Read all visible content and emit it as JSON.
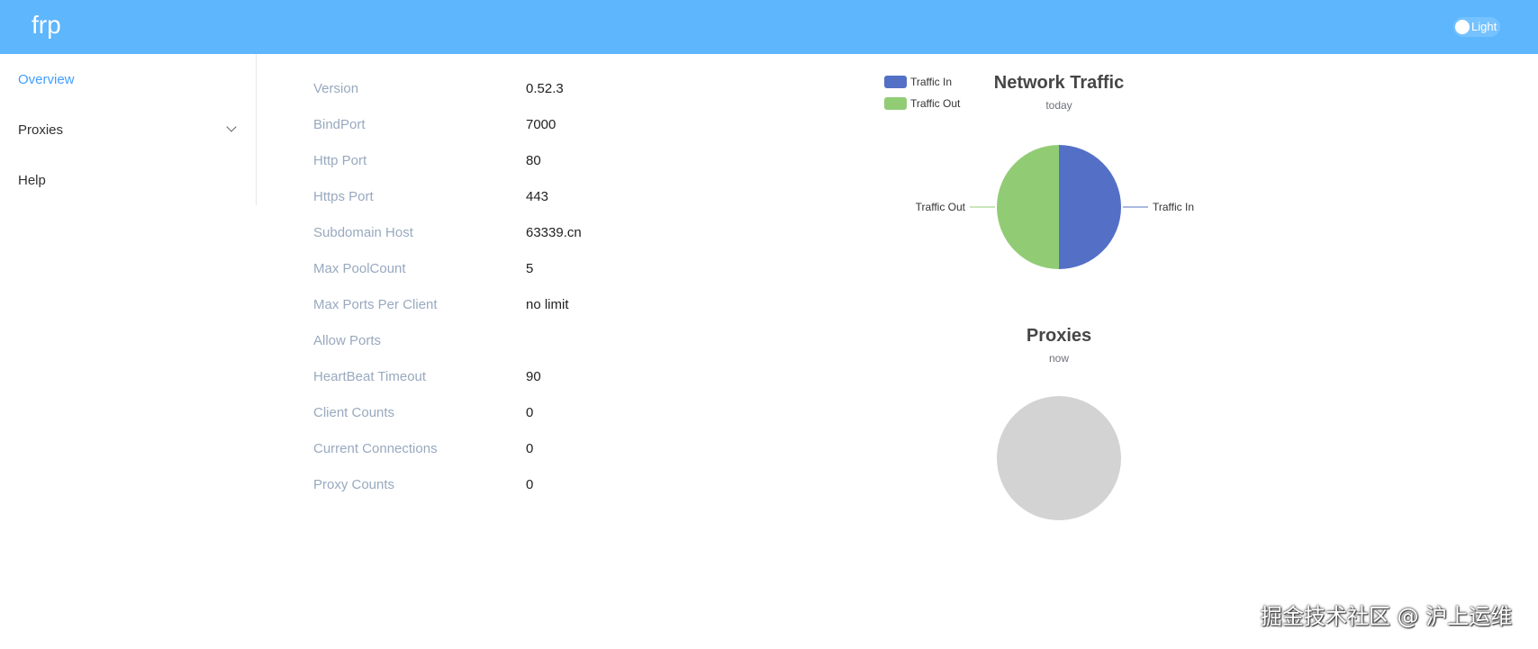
{
  "header": {
    "brand": "frp",
    "theme_toggle_label": "Light"
  },
  "sidebar": {
    "items": [
      {
        "label": "Overview",
        "active": true
      },
      {
        "label": "Proxies",
        "expandable": true
      },
      {
        "label": "Help"
      }
    ]
  },
  "server_info": [
    {
      "label": "Version",
      "value": "0.52.3"
    },
    {
      "label": "BindPort",
      "value": "7000"
    },
    {
      "label": "Http Port",
      "value": "80"
    },
    {
      "label": "Https Port",
      "value": "443"
    },
    {
      "label": "Subdomain Host",
      "value": "63339.cn"
    },
    {
      "label": "Max PoolCount",
      "value": "5"
    },
    {
      "label": "Max Ports Per Client",
      "value": "no limit"
    },
    {
      "label": "Allow Ports",
      "value": ""
    },
    {
      "label": "HeartBeat Timeout",
      "value": "90"
    },
    {
      "label": "Client Counts",
      "value": "0"
    },
    {
      "label": "Current Connections",
      "value": "0"
    },
    {
      "label": "Proxy Counts",
      "value": "0"
    }
  ],
  "chart_data": [
    {
      "type": "pie",
      "title": "Network Traffic",
      "subtitle": "today",
      "legend": [
        "Traffic In",
        "Traffic Out"
      ],
      "legend_position": "top-left",
      "slices": [
        {
          "name": "Traffic In",
          "value": 50,
          "color": "#5470c6"
        },
        {
          "name": "Traffic Out",
          "value": 50,
          "color": "#91cc75"
        }
      ]
    },
    {
      "type": "pie",
      "title": "Proxies",
      "subtitle": "now",
      "slices": [],
      "empty_color": "#d3d3d3"
    }
  ],
  "watermark": "掘金技术社区 @ 沪上运维"
}
